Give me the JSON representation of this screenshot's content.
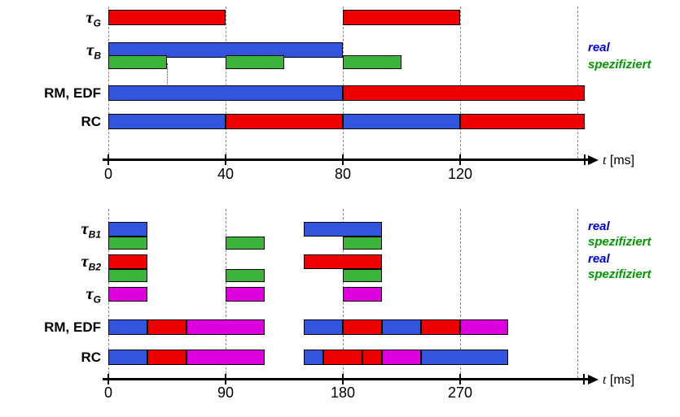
{
  "palette": {
    "red": "#EE0000",
    "blue": "#3355DD",
    "green": "#3CB43C",
    "magenta": "#DD00DD"
  },
  "chart_data": [
    {
      "type": "gantt",
      "title": "",
      "time_axis": {
        "unit_var": "t",
        "unit_text": "[ms]",
        "tick_values": [
          0,
          40,
          80,
          120
        ],
        "gridline_values": [
          0,
          40,
          80,
          120,
          160
        ],
        "end_tick_t": 162.5,
        "marker_t": 20
      },
      "legend": [
        {
          "label": "real",
          "color": "#0000EE"
        },
        {
          "label": "spezifiziert",
          "color": "#009900"
        }
      ],
      "rows": [
        {
          "label": "τ",
          "sub": "G",
          "bars": [
            {
              "t1": 0,
              "t2": 40,
              "color": "red"
            },
            {
              "t1": 80,
              "t2": 120,
              "color": "red"
            }
          ]
        },
        {
          "label": "τ",
          "sub": "B",
          "bars": [
            {
              "t1": 0,
              "t2": 80,
              "color": "blue"
            }
          ],
          "spec_bars": [
            {
              "t1": 0,
              "t2": 20,
              "color": "green"
            },
            {
              "t1": 40,
              "t2": 60,
              "color": "green"
            },
            {
              "t1": 80,
              "t2": 100,
              "color": "green"
            }
          ]
        },
        {
          "label": "RM, EDF",
          "bars": [
            {
              "t1": 0,
              "t2": 80,
              "color": "blue"
            },
            {
              "t1": 80,
              "t2": 162.5,
              "color": "red"
            }
          ]
        },
        {
          "label": "RC",
          "bars": [
            {
              "t1": 0,
              "t2": 40,
              "color": "blue"
            },
            {
              "t1": 40,
              "t2": 80,
              "color": "red"
            },
            {
              "t1": 80,
              "t2": 120,
              "color": "blue"
            },
            {
              "t1": 120,
              "t2": 162.5,
              "color": "red"
            }
          ]
        }
      ]
    },
    {
      "type": "gantt",
      "title": "",
      "time_axis": {
        "unit_var": "t",
        "unit_text": "[ms]",
        "tick_values": [
          0,
          90,
          180,
          270
        ],
        "gridline_values": [
          0,
          90,
          180,
          270,
          360
        ],
        "end_tick_t": 365
      },
      "legend": [
        {
          "label": "real",
          "color": "#0000EE"
        },
        {
          "label": "spezifiziert",
          "color": "#009900"
        },
        {
          "label": "real",
          "color": "#0000EE"
        },
        {
          "label": "spezifiziert",
          "color": "#009900"
        }
      ],
      "rows": [
        {
          "label": "τ",
          "sub": "B1",
          "bars": [
            {
              "t1": 0,
              "t2": 30,
              "color": "blue"
            },
            {
              "t1": 150,
              "t2": 210,
              "color": "blue"
            }
          ],
          "spec_bars": [
            {
              "t1": 0,
              "t2": 30,
              "color": "green"
            },
            {
              "t1": 90,
              "t2": 120,
              "color": "green"
            },
            {
              "t1": 180,
              "t2": 210,
              "color": "green"
            }
          ]
        },
        {
          "label": "τ",
          "sub": "B2",
          "bars": [
            {
              "t1": 0,
              "t2": 30,
              "color": "red"
            },
            {
              "t1": 150,
              "t2": 210,
              "color": "red"
            }
          ],
          "spec_bars": [
            {
              "t1": 0,
              "t2": 30,
              "color": "green"
            },
            {
              "t1": 90,
              "t2": 120,
              "color": "green"
            },
            {
              "t1": 180,
              "t2": 210,
              "color": "green"
            }
          ]
        },
        {
          "label": "τ",
          "sub": "G",
          "bars": [
            {
              "t1": 0,
              "t2": 30,
              "color": "magenta"
            },
            {
              "t1": 90,
              "t2": 120,
              "color": "magenta"
            },
            {
              "t1": 180,
              "t2": 210,
              "color": "magenta"
            }
          ]
        },
        {
          "label": "RM, EDF",
          "bars": [
            {
              "t1": 0,
              "t2": 30,
              "color": "blue"
            },
            {
              "t1": 30,
              "t2": 60,
              "color": "red"
            },
            {
              "t1": 60,
              "t2": 120,
              "color": "magenta"
            },
            {
              "t1": 150,
              "t2": 180,
              "color": "blue"
            },
            {
              "t1": 180,
              "t2": 210,
              "color": "red"
            },
            {
              "t1": 210,
              "t2": 240,
              "color": "blue"
            },
            {
              "t1": 240,
              "t2": 270,
              "color": "red"
            },
            {
              "t1": 270,
              "t2": 307,
              "color": "magenta"
            }
          ]
        },
        {
          "label": "RC",
          "bars": [
            {
              "t1": 0,
              "t2": 30,
              "color": "blue"
            },
            {
              "t1": 30,
              "t2": 60,
              "color": "red"
            },
            {
              "t1": 60,
              "t2": 120,
              "color": "magenta"
            },
            {
              "t1": 150,
              "t2": 165,
              "color": "blue"
            },
            {
              "t1": 165,
              "t2": 195,
              "color": "red"
            },
            {
              "t1": 195,
              "t2": 210,
              "color": "red"
            },
            {
              "t1": 210,
              "t2": 240,
              "color": "magenta"
            },
            {
              "t1": 240,
              "t2": 307,
              "color": "blue"
            }
          ]
        }
      ]
    }
  ]
}
